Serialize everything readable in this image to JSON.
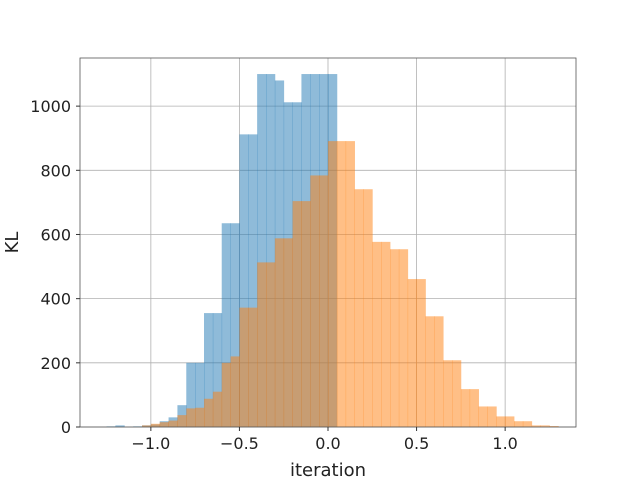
{
  "chart_data": {
    "type": "bar",
    "subtype": "overlapping-histogram",
    "title": "",
    "xlabel": "iteration",
    "ylabel": "KL",
    "xlim": [
      -1.4,
      1.4
    ],
    "ylim": [
      0,
      1150
    ],
    "xticks": [
      -1.0,
      -0.5,
      0.0,
      0.5,
      1.0
    ],
    "xtick_labels": [
      "−1.0",
      "−0.5",
      "0.0",
      "0.5",
      "1.0"
    ],
    "yticks": [
      0,
      200,
      400,
      600,
      800,
      1000
    ],
    "ytick_labels": [
      "0",
      "200",
      "400",
      "600",
      "800",
      "1000"
    ],
    "grid": true,
    "legend": "none",
    "bar_opacity": 0.5,
    "series": [
      {
        "color": "#1f77b4",
        "bin_edges": [
          -1.25,
          -1.2,
          -1.15,
          -1.1,
          -1.05,
          -1.0,
          -0.95,
          -0.9,
          -0.85,
          -0.8,
          -0.75,
          -0.7,
          -0.65,
          -0.6,
          -0.55,
          -0.5,
          -0.45,
          -0.4,
          -0.35,
          -0.3,
          -0.25,
          -0.2,
          -0.15,
          -0.1,
          -0.05,
          0.0,
          0.05
        ],
        "counts": [
          2,
          5,
          0,
          2,
          5,
          8,
          18,
          30,
          68,
          200,
          200,
          355,
          355,
          635,
          635,
          912,
          912,
          1100,
          1100,
          1080,
          1012,
          1012,
          1100,
          1100,
          1100,
          1100
        ]
      },
      {
        "color": "#ff7f0e",
        "bin_edges": [
          -1.05,
          -1.0,
          -0.95,
          -0.9,
          -0.85,
          -0.8,
          -0.75,
          -0.7,
          -0.65,
          -0.6,
          -0.55,
          -0.5,
          -0.45,
          -0.4,
          -0.35,
          -0.3,
          -0.25,
          -0.2,
          -0.15,
          -0.1,
          -0.05,
          0.0,
          0.05,
          0.1,
          0.15,
          0.2,
          0.25,
          0.3,
          0.35,
          0.4,
          0.45,
          0.5,
          0.55,
          0.6,
          0.65,
          0.7,
          0.75,
          0.8,
          0.85,
          0.9,
          0.95,
          1.0,
          1.05,
          1.1,
          1.15,
          1.2,
          1.25,
          1.3
        ],
        "counts": [
          5,
          10,
          15,
          20,
          37,
          58,
          60,
          88,
          110,
          200,
          220,
          372,
          372,
          513,
          513,
          588,
          588,
          704,
          704,
          784,
          784,
          891,
          891,
          891,
          741,
          741,
          577,
          577,
          554,
          554,
          461,
          461,
          345,
          345,
          208,
          208,
          118,
          118,
          64,
          64,
          33,
          33,
          18,
          18,
          5,
          5,
          3
        ]
      }
    ]
  }
}
